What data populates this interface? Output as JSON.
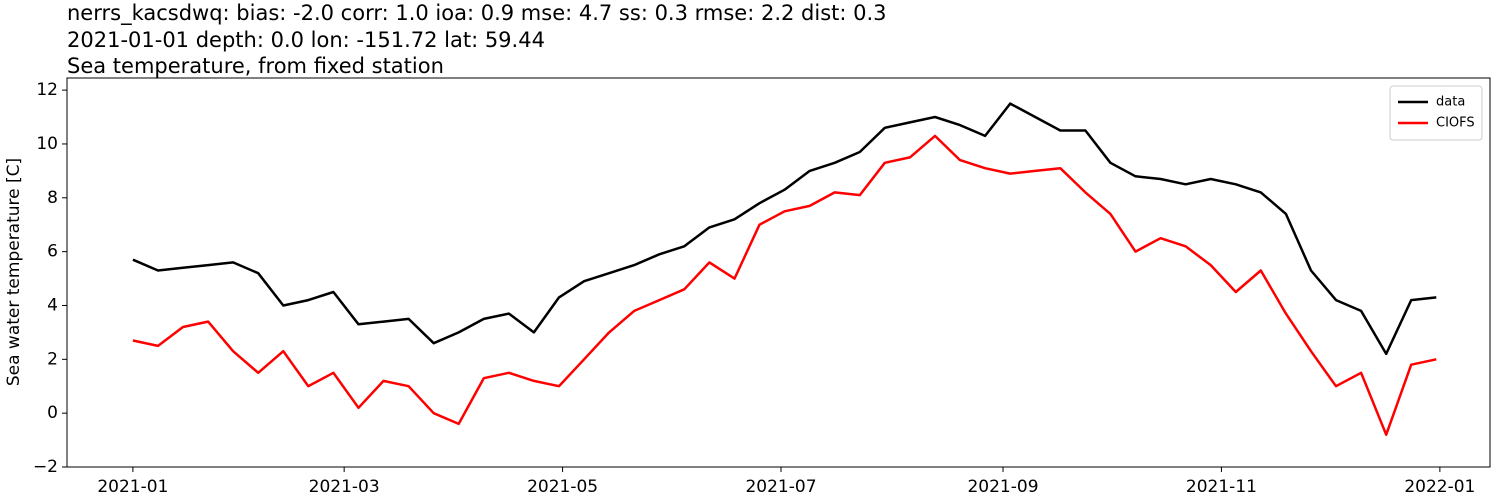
{
  "chart_data": {
    "type": "line",
    "title_lines": [
      "nerrs_kacsdwq: bias: -2.0  corr: 1.0  ioa: 0.9  mse: 4.7  ss: 0.3  rmse: 2.2  dist: 0.3",
      "2021-01-01 depth: 0.0 lon: -151.72 lat: 59.44",
      "Sea temperature, from fixed station"
    ],
    "y_label": "Sea water temperature [C]",
    "x": [
      0,
      7,
      14,
      21,
      28,
      35,
      42,
      49,
      56,
      63,
      70,
      77,
      84,
      91,
      98,
      105,
      112,
      119,
      126,
      133,
      140,
      147,
      154,
      161,
      168,
      175,
      182,
      189,
      196,
      203,
      210,
      217,
      224,
      231,
      238,
      245,
      252,
      259,
      266,
      273,
      280,
      287,
      294,
      301,
      308,
      315,
      322,
      329,
      336,
      343,
      350,
      357,
      364
    ],
    "series": [
      {
        "name": "data",
        "color": "#000000",
        "values": [
          5.7,
          5.3,
          5.4,
          5.5,
          5.6,
          5.2,
          4.0,
          4.2,
          4.5,
          3.3,
          3.4,
          3.5,
          2.6,
          3.0,
          3.5,
          3.7,
          3.0,
          4.3,
          4.9,
          5.2,
          5.5,
          5.9,
          6.2,
          6.9,
          7.2,
          7.8,
          8.3,
          9.0,
          9.3,
          9.7,
          10.6,
          10.8,
          11.0,
          10.7,
          10.3,
          11.5,
          11.0,
          10.5,
          10.5,
          9.3,
          8.8,
          8.7,
          8.5,
          8.7,
          8.5,
          8.2,
          7.4,
          5.3,
          4.2,
          3.8,
          2.2,
          4.2,
          4.3
        ]
      },
      {
        "name": "CIOFS",
        "color": "#ff0000",
        "values": [
          2.7,
          2.5,
          3.2,
          3.4,
          2.3,
          1.5,
          2.3,
          1.0,
          1.5,
          0.2,
          1.2,
          1.0,
          0.0,
          -0.4,
          1.3,
          1.5,
          1.2,
          1.0,
          2.0,
          3.0,
          3.8,
          4.2,
          4.6,
          5.6,
          5.0,
          7.0,
          7.5,
          7.7,
          8.2,
          8.1,
          9.3,
          9.5,
          10.3,
          9.4,
          9.1,
          8.9,
          9.0,
          9.1,
          8.2,
          7.4,
          6.0,
          6.5,
          6.2,
          5.5,
          4.5,
          5.3,
          3.7,
          2.3,
          1.0,
          1.5,
          -0.8,
          1.8,
          2.0
        ]
      }
    ],
    "xlim": [
      -18.4,
      379
    ],
    "xticks": [
      {
        "value": 0,
        "label": "2021-01"
      },
      {
        "value": 59,
        "label": "2021-03"
      },
      {
        "value": 120,
        "label": "2021-05"
      },
      {
        "value": 181,
        "label": "2021-07"
      },
      {
        "value": 243,
        "label": "2021-09"
      },
      {
        "value": 304,
        "label": "2021-11"
      },
      {
        "value": 365,
        "label": "2022-01"
      }
    ],
    "ylim": [
      -2,
      12.45
    ],
    "yticks": [
      {
        "value": -2,
        "label": "−2"
      },
      0,
      2,
      4,
      6,
      8,
      10,
      12
    ],
    "legend": "upper right",
    "grid": false
  }
}
